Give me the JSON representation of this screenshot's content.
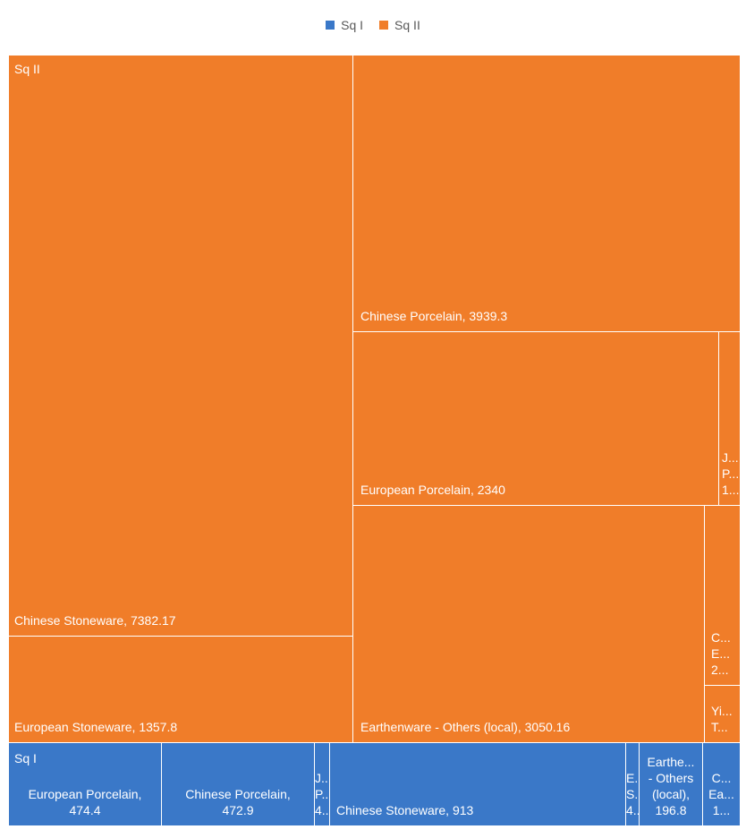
{
  "chart_data": {
    "type": "treemap",
    "legend": {
      "position": "top",
      "items": [
        {
          "name": "Sq I",
          "color": "#3A78C8"
        },
        {
          "name": "Sq II",
          "color": "#F07D29"
        }
      ]
    },
    "groups": [
      {
        "name": "Sq II",
        "color": "#F07D29",
        "items": [
          {
            "label": "Chinese Stoneware",
            "value": 7382.17,
            "display": [
              "Chinese Stoneware, 7382.17"
            ]
          },
          {
            "label": "European Stoneware",
            "value": 1357.8,
            "display": [
              "European Stoneware, 1357.8"
            ]
          },
          {
            "label": "Chinese Porcelain",
            "value": 3939.3,
            "display": [
              "Chinese Porcelain, 3939.3"
            ]
          },
          {
            "label": "European Porcelain",
            "value": 2340,
            "display": [
              "European Porcelain, 2340"
            ]
          },
          {
            "label": "",
            "value": null,
            "display": [
              "J...",
              "P...",
              "1..."
            ]
          },
          {
            "label": "Earthenware - Others (local)",
            "value": 3050.16,
            "display": [
              "Earthenware - Others (local), 3050.16"
            ]
          },
          {
            "label": "",
            "value": null,
            "display": [
              "C...",
              "E...",
              "2..."
            ]
          },
          {
            "label": "",
            "value": null,
            "display": [
              "Yi...",
              "T..."
            ]
          }
        ]
      },
      {
        "name": "Sq I",
        "color": "#3A78C8",
        "items": [
          {
            "label": "European Porcelain",
            "value": 474.4,
            "display": [
              "European Porcelain,",
              "474.4"
            ]
          },
          {
            "label": "Chinese Porcelain",
            "value": 472.9,
            "display": [
              "Chinese Porcelain,",
              "472.9"
            ]
          },
          {
            "label": "",
            "value": null,
            "display": [
              "J...",
              "P...",
              "4..."
            ]
          },
          {
            "label": "Chinese Stoneware",
            "value": 913,
            "display": [
              "Chinese Stoneware, 913"
            ]
          },
          {
            "label": "",
            "value": null,
            "display": [
              "E...",
              "S...",
              "4..."
            ]
          },
          {
            "label": "Earthenware - Others (local)",
            "value": 196.8,
            "display": [
              "Earthe...",
              "- Others",
              "(local),",
              "196.8"
            ]
          },
          {
            "label": "",
            "value": null,
            "display": [
              "C...",
              "Ea...",
              "1..."
            ]
          }
        ]
      }
    ]
  }
}
